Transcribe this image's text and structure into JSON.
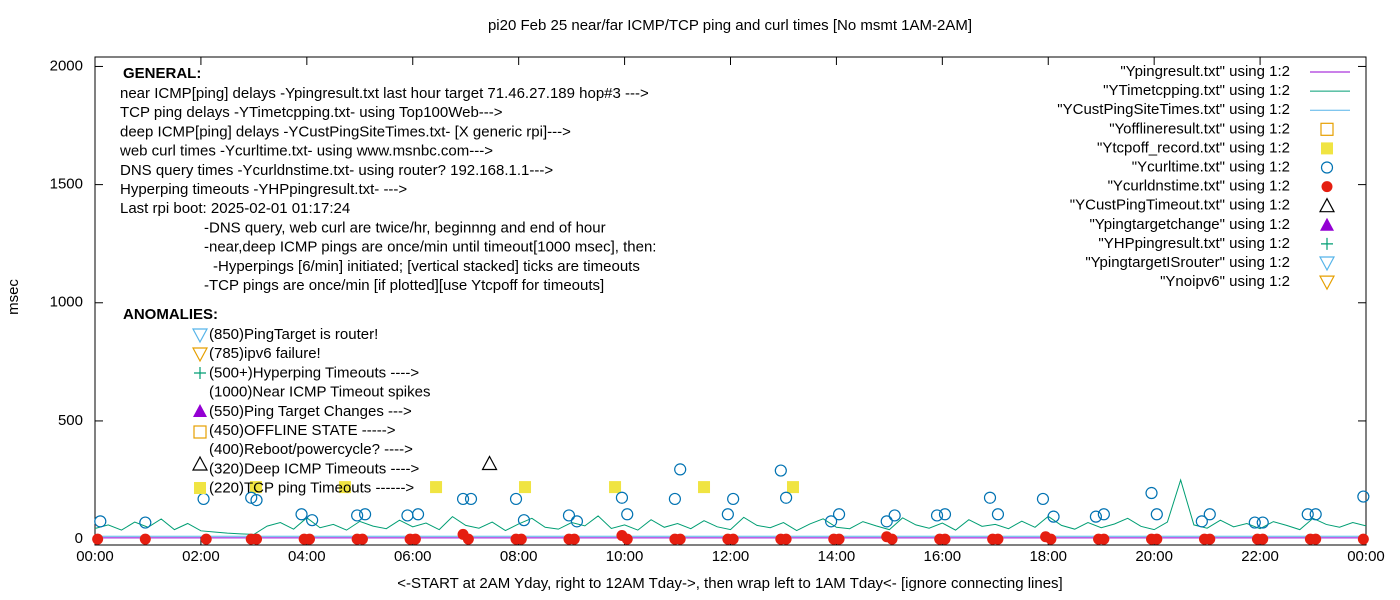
{
  "chart_data": {
    "type": "scatter",
    "title": "pi20 Feb 25  near/far ICMP/TCP ping and curl times [No msmt 1AM-2AM]",
    "x_label": "<-START at 2AM Yday, right to 12AM Tday->, then wrap left to 1AM Tday<- [ignore connecting lines]",
    "y_label": "msec",
    "xlim": [
      0,
      24
    ],
    "xticks": [
      {
        "value": 0,
        "label": "00:00"
      },
      {
        "value": 2,
        "label": "02:00"
      },
      {
        "value": 4,
        "label": "04:00"
      },
      {
        "value": 6,
        "label": "06:00"
      },
      {
        "value": 8,
        "label": "08:00"
      },
      {
        "value": 10,
        "label": "10:00"
      },
      {
        "value": 12,
        "label": "12:00"
      },
      {
        "value": 14,
        "label": "14:00"
      },
      {
        "value": 16,
        "label": "16:00"
      },
      {
        "value": 18,
        "label": "18:00"
      },
      {
        "value": 20,
        "label": "20:00"
      },
      {
        "value": 22,
        "label": "22:00"
      },
      {
        "value": 24,
        "label": "00:00"
      }
    ],
    "ylim": [
      -25,
      2040
    ],
    "yticks": [
      0,
      500,
      1000,
      1500,
      2000
    ],
    "grid": false,
    "legend": "top-right",
    "general_heading": "GENERAL:",
    "general_lines": [
      "near ICMP[ping] delays -Ypingresult.txt last hour target 71.46.27.189 hop#3 --->",
      "TCP ping delays -YTimetcpping.txt- using Top100Web--->",
      "deep ICMP[ping] delays -YCustPingSiteTimes.txt- [X generic rpi]--->",
      "web curl times -Ycurltime.txt- using www.msnbc.com--->",
      "DNS query times -Ycurldnstime.txt- using router? 192.168.1.1--->",
      "Hyperping timeouts -YHPpingresult.txt- --->",
      "Last rpi boot: 2025-02-01 01:17:24",
      "-DNS query, web curl are twice/hr, beginnng and end of hour",
      "-near,deep ICMP pings are once/min until timeout[1000 msec], then:",
      "-Hyperpings [6/min] initiated; [vertical stacked] ticks are timeouts",
      "-TCP pings are once/min [if plotted][use Ytcpoff for timeouts]"
    ],
    "anomalies_heading": "ANOMALIES:",
    "anomalies_lines": [
      "(850)PingTarget is router!",
      "(785)ipv6 failure!",
      "(500+)Hyperping Timeouts ---->",
      "(1000)Near ICMP Timeout spikes",
      "(550)Ping Target Changes --->",
      "(450)OFFLINE STATE ----->",
      "(400)Reboot/powercycle? ---->",
      "(320)Deep ICMP Timeouts ---->",
      "(220)TCP ping Timeouts ------>"
    ],
    "series": [
      {
        "name": "\"Ypingresult.txt\" using 1:2",
        "color": "#9400d3",
        "marker": "line",
        "x": [
          0,
          1,
          2,
          3,
          4,
          5,
          6,
          7,
          8,
          9,
          10,
          11,
          12,
          13,
          14,
          15,
          16,
          17,
          18,
          19,
          20,
          21,
          22,
          23,
          24
        ],
        "values": [
          5,
          5,
          5,
          5,
          5,
          5,
          5,
          5,
          5,
          5,
          5,
          5,
          5,
          5,
          5,
          5,
          5,
          5,
          5,
          5,
          5,
          5,
          5,
          5,
          5
        ]
      },
      {
        "name": "\"YTimetcpping.txt\" using 1:2",
        "color": "#009e73",
        "marker": "line",
        "x": [
          0,
          0.25,
          0.5,
          0.75,
          1,
          1.25,
          1.5,
          1.75,
          2,
          2.25,
          2.5,
          2.75,
          3,
          3.25,
          3.5,
          3.75,
          4,
          4.25,
          4.5,
          4.75,
          5,
          5.25,
          5.5,
          5.75,
          6,
          6.25,
          6.5,
          6.75,
          7,
          7.25,
          7.5,
          7.75,
          8,
          8.25,
          8.5,
          8.75,
          9,
          9.25,
          9.5,
          9.75,
          10,
          10.25,
          10.5,
          10.75,
          11,
          11.25,
          11.5,
          11.75,
          12,
          12.25,
          12.5,
          12.75,
          13,
          13.25,
          13.5,
          13.75,
          14,
          14.25,
          14.5,
          14.75,
          15,
          15.25,
          15.5,
          15.75,
          16,
          16.25,
          16.5,
          16.75,
          17,
          17.25,
          17.5,
          17.75,
          18,
          18.25,
          18.5,
          18.75,
          19,
          19.25,
          19.5,
          19.75,
          20,
          20.25,
          20.5,
          20.75,
          21,
          21.25,
          21.5,
          21.75,
          22,
          22.25,
          22.5,
          22.75,
          23,
          23.25,
          23.5,
          23.75,
          24
        ],
        "values": [
          45,
          60,
          38,
          72,
          50,
          85,
          40,
          66,
          35,
          30,
          25,
          22,
          20,
          55,
          70,
          42,
          90,
          48,
          62,
          38,
          75,
          55,
          44,
          80,
          52,
          68,
          40,
          95,
          58,
          46,
          72,
          36,
          64,
          88,
          50,
          42,
          70,
          56,
          98,
          45,
          60,
          38,
          82,
          50,
          66,
          44,
          78,
          52,
          40,
          92,
          58,
          48,
          70,
          36,
          64,
          86,
          50,
          44,
          74,
          56,
          40,
          90,
          60,
          46,
          68,
          38,
          82,
          54,
          62,
          44,
          76,
          50,
          96,
          58,
          42,
          70,
          48,
          64,
          88,
          54,
          40,
          72,
          250,
          60,
          46,
          80,
          52,
          66,
          44,
          74,
          58,
          40,
          88,
          62,
          50,
          70,
          56
        ]
      },
      {
        "name": "\"YCustPingSiteTimes.txt\" using 1:2",
        "color": "#56b4e9",
        "marker": "line",
        "x": [
          0,
          1,
          2,
          3,
          4,
          5,
          6,
          7,
          8,
          9,
          10,
          11,
          12,
          13,
          14,
          15,
          16,
          17,
          18,
          19,
          20,
          21,
          22,
          23,
          24
        ],
        "values": [
          12,
          12,
          12,
          12,
          12,
          12,
          12,
          12,
          12,
          12,
          12,
          12,
          12,
          12,
          12,
          12,
          12,
          12,
          12,
          12,
          12,
          12,
          12,
          12,
          12
        ]
      },
      {
        "name": "\"Yofflineresult.txt\" using 1:2",
        "color": "#e69f00",
        "marker": "square-open",
        "x": [],
        "values": []
      },
      {
        "name": "\"Ytcpoff_record.txt\" using 1:2",
        "color": "#f0e442",
        "marker": "square-filled",
        "x": [
          3.04,
          4.72,
          6.44,
          8.12,
          9.82,
          11.5,
          13.18
        ],
        "values": [
          220,
          220,
          220,
          220,
          220,
          220,
          220
        ]
      },
      {
        "name": "\"Ycurltime.txt\" using 1:2",
        "color": "#0072b2",
        "marker": "circle-open",
        "x": [
          0.1,
          0.95,
          2.05,
          2.95,
          3.05,
          3.9,
          4.1,
          4.95,
          5.1,
          5.9,
          6.1,
          6.95,
          7.1,
          7.95,
          8.1,
          8.95,
          9.1,
          9.95,
          10.05,
          10.95,
          11.05,
          11.95,
          12.05,
          12.95,
          13.05,
          13.9,
          14.05,
          14.95,
          15.1,
          15.9,
          16.05,
          16.9,
          17.05,
          17.9,
          18.1,
          18.9,
          19.05,
          19.95,
          20.05,
          20.9,
          21.05,
          21.9,
          22.05,
          22.9,
          23.05,
          23.95
        ],
        "values": [
          75,
          70,
          170,
          175,
          165,
          105,
          80,
          100,
          105,
          100,
          105,
          170,
          170,
          170,
          80,
          100,
          75,
          175,
          105,
          170,
          295,
          105,
          170,
          290,
          175,
          75,
          105,
          75,
          100,
          100,
          105,
          175,
          105,
          170,
          95,
          95,
          105,
          195,
          105,
          75,
          105,
          70,
          70,
          105,
          105,
          180
        ]
      },
      {
        "name": "\"Ycurldnstime.txt\" using 1:2",
        "color": "#e51e10",
        "marker": "circle-filled",
        "x": [
          0.05,
          0.95,
          2.1,
          2.95,
          3.05,
          3.95,
          4.05,
          4.95,
          5.05,
          5.95,
          6.05,
          6.95,
          7.05,
          7.95,
          8.05,
          8.95,
          9.05,
          9.95,
          10.05,
          10.95,
          11.05,
          11.95,
          12.05,
          12.95,
          13.05,
          13.95,
          14.05,
          14.95,
          15.05,
          15.95,
          16.05,
          16.95,
          17.05,
          17.95,
          18.05,
          18.95,
          19.05,
          19.95,
          20.05,
          20.95,
          21.05,
          21.95,
          22.05,
          22.95,
          23.05,
          23.95
        ],
        "values": [
          0,
          0,
          0,
          0,
          0,
          0,
          0,
          0,
          0,
          0,
          0,
          20,
          0,
          0,
          0,
          0,
          0,
          15,
          0,
          0,
          0,
          0,
          0,
          0,
          0,
          0,
          0,
          10,
          0,
          0,
          0,
          0,
          0,
          10,
          0,
          0,
          0,
          0,
          0,
          0,
          0,
          0,
          0,
          0,
          0,
          0
        ]
      },
      {
        "name": "\"YCustPingTimeout.txt\" using 1:2",
        "color": "#000000",
        "marker": "triangle-open",
        "x": [
          7.45
        ],
        "values": [
          320
        ]
      },
      {
        "name": "\"Ypingtargetchange\" using 1:2",
        "color": "#9400d3",
        "marker": "triangle-filled",
        "x": [],
        "values": []
      },
      {
        "name": "\"YHPpingresult.txt\" using 1:2",
        "color": "#009e73",
        "marker": "plus",
        "x": [],
        "values": []
      },
      {
        "name": "\"YpingtargetISrouter\" using 1:2",
        "color": "#56b4e9",
        "marker": "triangle-down-open",
        "x": [],
        "values": []
      },
      {
        "name": "\"Ynoipv6\" using 1:2",
        "color": "#e69f00",
        "marker": "triangle-down-open",
        "x": [],
        "values": []
      }
    ]
  }
}
